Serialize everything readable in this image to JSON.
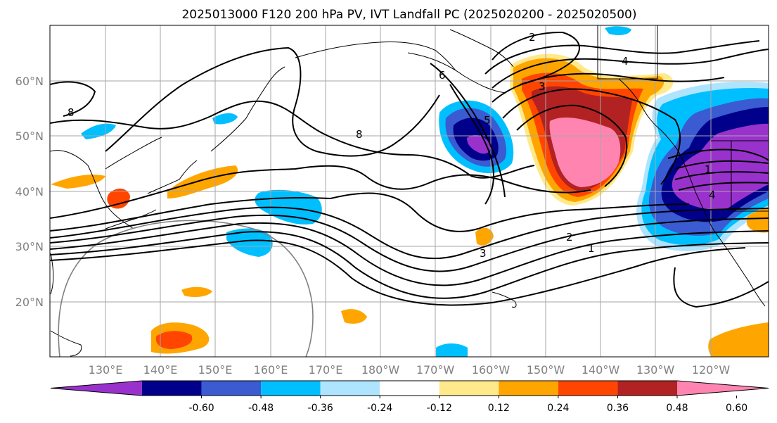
{
  "title": "2025013000 F120 200 hPa PV, IVT Landfall PC (2025020200 - 2025020500)",
  "map": {
    "lat_labels": [
      "60°N",
      "50°N",
      "40°N",
      "30°N",
      "20°N"
    ],
    "lon_labels": [
      "130°E",
      "140°E",
      "150°E",
      "160°E",
      "170°E",
      "180°W",
      "170°W",
      "160°W",
      "150°W",
      "140°W",
      "130°W",
      "120°W"
    ],
    "lat_range": [
      10,
      70
    ],
    "lon_range": [
      120,
      251
    ],
    "contour_labels": [
      "2",
      "4",
      "6",
      "8",
      "8",
      "5",
      "3",
      "2",
      "1",
      "3",
      "4",
      "1"
    ]
  },
  "colorbar": {
    "ticks": [
      "-0.60",
      "-0.48",
      "-0.36",
      "-0.24",
      "-0.12",
      "0.12",
      "0.24",
      "0.36",
      "0.48",
      "0.60"
    ],
    "colors": [
      "#9932cc",
      "#00008b",
      "#3a5bd1",
      "#00bfff",
      "#afe4ff",
      "#ffffff",
      "#ffe98a",
      "#ffa500",
      "#ff4500",
      "#b22222",
      "#ff85b0"
    ]
  }
}
